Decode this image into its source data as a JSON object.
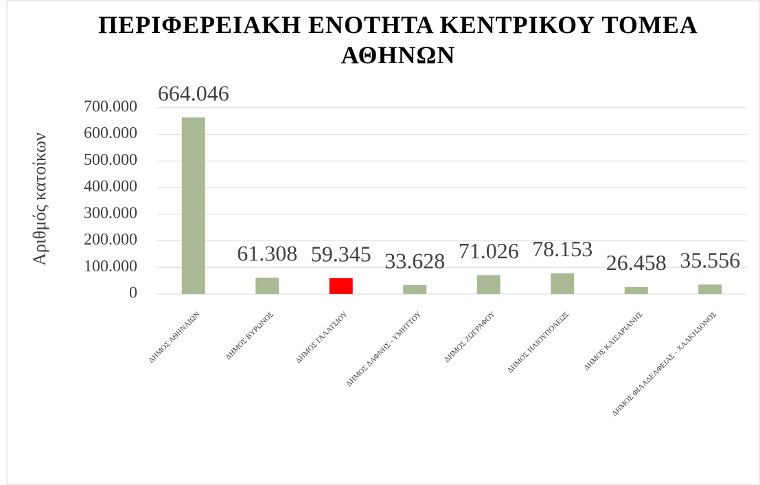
{
  "chart_data": {
    "type": "bar",
    "title": "ΠΕΡΙΦΕΡΕΙΑΚΗ ΕΝΟΤΗΤΑ ΚΕΝΤΡΙΚΟΥ ΤΟΜΕΑ ΑΘΗΝΩΝ",
    "y_label": "Αριθμός κατοίκων",
    "categories": [
      "ΔΗΜΟΣ ΑΘΗΝΑΙΩΝ",
      "ΔΗΜΟΣ ΒΥΡΩΝΟΣ",
      "ΔΗΜΟΣ ΓΑΛΑΤΣΙΟΥ",
      "ΔΗΜΟΣ ΔΑΦΝΗΣ - ΥΜΗΤΤΟΥ",
      "ΔΗΜΟΣ ΖΩΓΡΑΦΟΥ",
      "ΔΗΜΟΣ ΗΛΙΟΥΠΟΛΕΩΣ",
      "ΔΗΜΟΣ ΚΑΙΣΑΡΙΑΝΗΣ",
      "ΔΗΜΟΣ ΦΙΛΑΔΕΛΦΕΙΑΣ - ΧΑΛΚΗΔΟΝΟΣ"
    ],
    "values": [
      664046,
      61308,
      59345,
      33628,
      71026,
      78153,
      26458,
      35556
    ],
    "value_labels": [
      "664.046",
      "61.308",
      "59.345",
      "33.628",
      "71.026",
      "78.153",
      "26.458",
      "35.556"
    ],
    "colors": [
      "#a9b995",
      "#a9b995",
      "#ff0000",
      "#a9b995",
      "#a9b995",
      "#a9b995",
      "#a9b995",
      "#a9b995"
    ],
    "ylim": [
      0,
      700000
    ],
    "yticks": [
      {
        "value": 0,
        "label": "0"
      },
      {
        "value": 100000,
        "label": "100.000"
      },
      {
        "value": 200000,
        "label": "200.000"
      },
      {
        "value": 300000,
        "label": "300.000"
      },
      {
        "value": 400000,
        "label": "400.000"
      },
      {
        "value": 500000,
        "label": "500.000"
      },
      {
        "value": 600000,
        "label": "600.000"
      },
      {
        "value": 700000,
        "label": "700.000"
      }
    ],
    "grid": true
  }
}
